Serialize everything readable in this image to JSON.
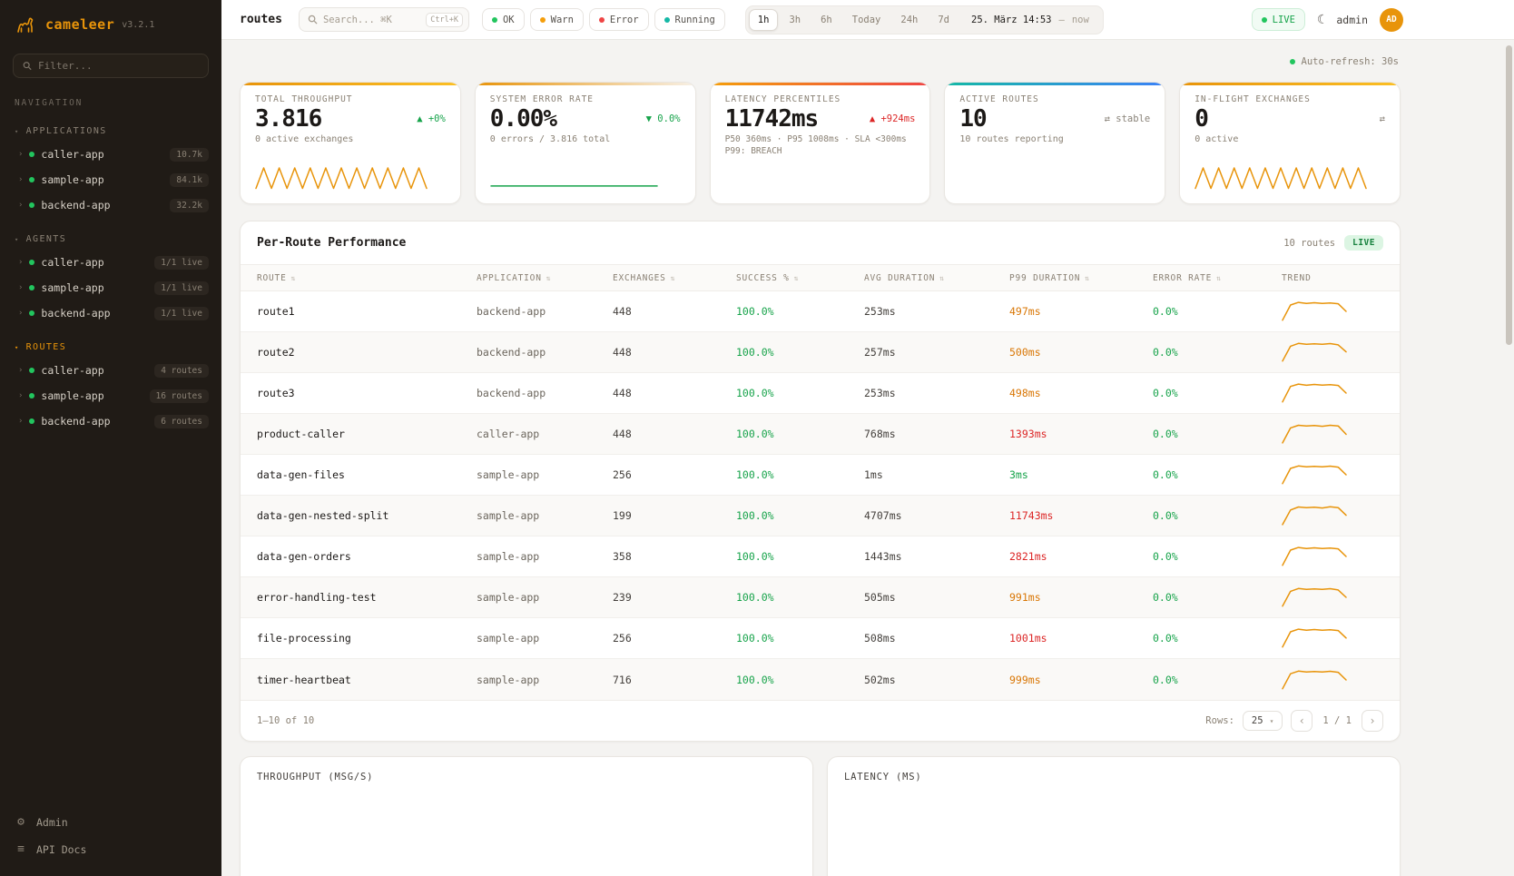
{
  "palette": {
    "green": "#16a34a",
    "amber": "#d97706",
    "red": "#dc2626",
    "gray": "#8a8379",
    "orange": "#e8940a"
  },
  "sidebar": {
    "logo": {
      "name": "cameleer",
      "version": "v3.2.1"
    },
    "filter_placeholder": "Filter...",
    "nav_label": "NAVIGATION",
    "sections": [
      {
        "label": "APPLICATIONS",
        "items": [
          {
            "name": "caller-app",
            "badge": "10.7k"
          },
          {
            "name": "sample-app",
            "badge": "84.1k"
          },
          {
            "name": "backend-app",
            "badge": "32.2k"
          }
        ]
      },
      {
        "label": "AGENTS",
        "items": [
          {
            "name": "caller-app",
            "badge": "1/1 live"
          },
          {
            "name": "sample-app",
            "badge": "1/1 live"
          },
          {
            "name": "backend-app",
            "badge": "1/1 live"
          }
        ]
      },
      {
        "label": "ROUTES",
        "items": [
          {
            "name": "caller-app",
            "badge": "4 routes"
          },
          {
            "name": "sample-app",
            "badge": "16 routes"
          },
          {
            "name": "backend-app",
            "badge": "6 routes"
          }
        ]
      }
    ],
    "footer_items": [
      {
        "label": "Admin",
        "icon": "⚙"
      },
      {
        "label": "API Docs",
        "icon": "≡"
      }
    ]
  },
  "topbar": {
    "title": "routes",
    "search": {
      "placeholder": "Search... ⌘K",
      "kbd": "Ctrl+K"
    },
    "chips": [
      {
        "label": "OK",
        "color": "#22c55e"
      },
      {
        "label": "Warn",
        "color": "#f59e0b"
      },
      {
        "label": "Error",
        "color": "#ef4444"
      },
      {
        "label": "Running",
        "color": "#14b8a6"
      }
    ],
    "ranges": [
      "1h",
      "3h",
      "6h",
      "Today",
      "24h",
      "7d"
    ],
    "active_range": "1h",
    "date": "25. März 14:53",
    "date_separator": "—",
    "date_end": "now",
    "live_label": "LIVE",
    "theme_toggle_icon": "☾",
    "user": "admin",
    "avatar_initials": "AD"
  },
  "main": {
    "auto_refresh": "Auto-refresh: 30s",
    "kpis": [
      {
        "title": "TOTAL THROUGHPUT",
        "value": "3.816",
        "delta": "▲ +0%",
        "delta_color": "green",
        "sub": "0 active exchanges",
        "gradient": [
          "#e8940a",
          "#fbbf24"
        ],
        "spark": {
          "color": "#e8940a",
          "points": [
            0.15,
            0.9,
            0.15,
            0.9,
            0.15,
            0.9,
            0.15,
            0.9,
            0.15,
            0.9,
            0.15,
            0.9,
            0.15,
            0.9,
            0.15,
            0.9,
            0.15,
            0.9,
            0.15,
            0.9,
            0.15,
            0.9,
            0.15
          ]
        }
      },
      {
        "title": "SYSTEM ERROR RATE",
        "value": "0.00%",
        "delta": "▼ 0.0%",
        "delta_color": "green",
        "sub": "0 errors / 3.816 total",
        "gradient": [
          "#e8940a",
          "#f7f0e6"
        ],
        "spark": {
          "color": "#16a34a",
          "points": [
            0.12,
            0.12
          ]
        }
      },
      {
        "title": "LATENCY PERCENTILES",
        "value": "11742ms",
        "delta": "▲ +924ms",
        "delta_color": "red",
        "sub": "P50 360ms · P95 1008ms · SLA <300ms",
        "sub2": "P99: BREACH",
        "gradient": [
          "#f59e0b",
          "#ef4444"
        ]
      },
      {
        "title": "ACTIVE ROUTES",
        "value": "10",
        "delta": "⇄ stable",
        "delta_color": "gray",
        "sub": "10 routes reporting",
        "gradient": [
          "#14b8a6",
          "#3b82f6"
        ]
      },
      {
        "title": "IN-FLIGHT EXCHANGES",
        "value": "0",
        "delta": "⇄",
        "delta_color": "gray",
        "sub": "0 active",
        "gradient": [
          "#e8940a",
          "#fbbf24"
        ],
        "spark": {
          "color": "#e8940a",
          "points": [
            0.15,
            0.9,
            0.15,
            0.9,
            0.15,
            0.9,
            0.15,
            0.9,
            0.15,
            0.9,
            0.15,
            0.9,
            0.15,
            0.9,
            0.15,
            0.9,
            0.15,
            0.9,
            0.15,
            0.9,
            0.15,
            0.9,
            0.15
          ]
        }
      }
    ],
    "table_panel": {
      "title": "Per-Route Performance",
      "count_label": "10 routes",
      "live_badge": "LIVE",
      "columns": [
        "ROUTE",
        "APPLICATION",
        "EXCHANGES",
        "SUCCESS %",
        "AVG DURATION",
        "P99 DURATION",
        "ERROR RATE",
        "TREND"
      ],
      "rows": [
        {
          "route": "route1",
          "app": "backend-app",
          "exchanges": "448",
          "success": "100.0%",
          "avg": "253ms",
          "p99": "497ms",
          "p99_color": "amber",
          "error": "0.0%",
          "spark": [
            0.06,
            0.82,
            0.95,
            0.9,
            0.93,
            0.9,
            0.92,
            0.88,
            0.5
          ]
        },
        {
          "route": "route2",
          "app": "backend-app",
          "exchanges": "448",
          "success": "100.0%",
          "avg": "257ms",
          "p99": "500ms",
          "p99_color": "amber",
          "error": "0.0%",
          "spark": [
            0.06,
            0.8,
            0.94,
            0.9,
            0.92,
            0.9,
            0.93,
            0.87,
            0.52
          ]
        },
        {
          "route": "route3",
          "app": "backend-app",
          "exchanges": "448",
          "success": "100.0%",
          "avg": "253ms",
          "p99": "498ms",
          "p99_color": "amber",
          "error": "0.0%",
          "spark": [
            0.06,
            0.83,
            0.95,
            0.89,
            0.93,
            0.9,
            0.92,
            0.88,
            0.5
          ]
        },
        {
          "route": "product-caller",
          "app": "caller-app",
          "exchanges": "448",
          "success": "100.0%",
          "avg": "768ms",
          "p99": "1393ms",
          "p99_color": "red",
          "error": "0.0%",
          "spark": [
            0.05,
            0.8,
            0.93,
            0.9,
            0.92,
            0.88,
            0.93,
            0.9,
            0.48
          ]
        },
        {
          "route": "data-gen-files",
          "app": "sample-app",
          "exchanges": "256",
          "success": "100.0%",
          "avg": "1ms",
          "p99": "3ms",
          "p99_color": "green",
          "error": "0.0%",
          "spark": [
            0.06,
            0.82,
            0.94,
            0.9,
            0.92,
            0.9,
            0.93,
            0.88,
            0.5
          ]
        },
        {
          "route": "data-gen-nested-split",
          "app": "sample-app",
          "exchanges": "199",
          "success": "100.0%",
          "avg": "4707ms",
          "p99": "11743ms",
          "p99_color": "red",
          "error": "0.0%",
          "spark": [
            0.05,
            0.78,
            0.93,
            0.9,
            0.92,
            0.88,
            0.94,
            0.9,
            0.52
          ]
        },
        {
          "route": "data-gen-orders",
          "app": "sample-app",
          "exchanges": "358",
          "success": "100.0%",
          "avg": "1443ms",
          "p99": "2821ms",
          "p99_color": "red",
          "error": "0.0%",
          "spark": [
            0.06,
            0.82,
            0.95,
            0.9,
            0.93,
            0.9,
            0.92,
            0.88,
            0.5
          ]
        },
        {
          "route": "error-handling-test",
          "app": "sample-app",
          "exchanges": "239",
          "success": "100.0%",
          "avg": "505ms",
          "p99": "991ms",
          "p99_color": "amber",
          "error": "0.0%",
          "spark": [
            0.06,
            0.8,
            0.94,
            0.9,
            0.92,
            0.9,
            0.93,
            0.87,
            0.5
          ]
        },
        {
          "route": "file-processing",
          "app": "sample-app",
          "exchanges": "256",
          "success": "100.0%",
          "avg": "508ms",
          "p99": "1001ms",
          "p99_color": "red",
          "error": "0.0%",
          "spark": [
            0.06,
            0.82,
            0.95,
            0.9,
            0.93,
            0.9,
            0.92,
            0.88,
            0.51
          ]
        },
        {
          "route": "timer-heartbeat",
          "app": "sample-app",
          "exchanges": "716",
          "success": "100.0%",
          "avg": "502ms",
          "p99": "999ms",
          "p99_color": "amber",
          "error": "0.0%",
          "spark": [
            0.06,
            0.81,
            0.94,
            0.9,
            0.92,
            0.9,
            0.93,
            0.88,
            0.5
          ]
        }
      ],
      "footer": {
        "range_label": "1–10 of 10",
        "rows_label": "Rows:",
        "rows_value": "25",
        "prev": "‹",
        "page": "1 / 1",
        "next": "›"
      }
    },
    "charts": [
      {
        "title": "THROUGHPUT (MSG/S)"
      },
      {
        "title": "LATENCY (MS)"
      }
    ]
  }
}
